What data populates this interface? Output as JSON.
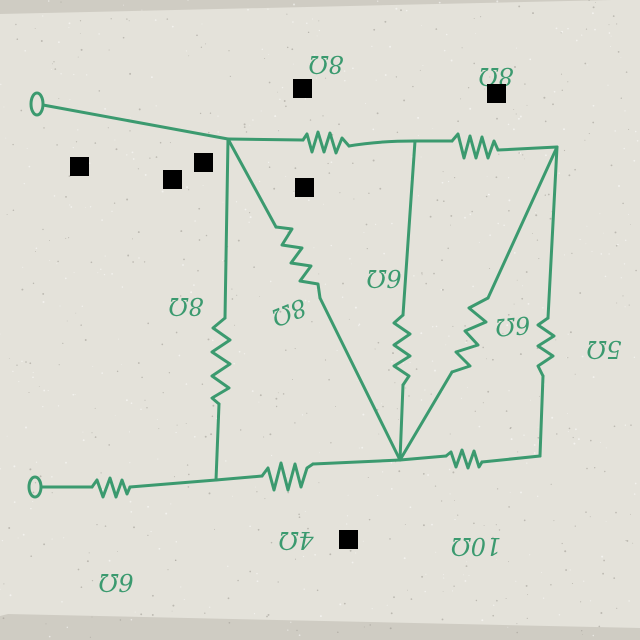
{
  "colors": {
    "board": "#e4e2da",
    "board_edge": "#cfccc3",
    "ink": "#3b9a6f",
    "redaction": "#000000"
  },
  "labels": {
    "r_top_left": "8Ω",
    "r_top_right": "8Ω",
    "r_left_vertical": "8Ω",
    "r_diagonal_left": "8Ω",
    "r_middle_vertical": "6Ω",
    "r_diagonal_right": "6Ω",
    "r_right_vertical": "5Ω",
    "r_bottom_middle": "4Ω",
    "r_bottom_right": "10Ω",
    "r_input": "6Ω"
  }
}
